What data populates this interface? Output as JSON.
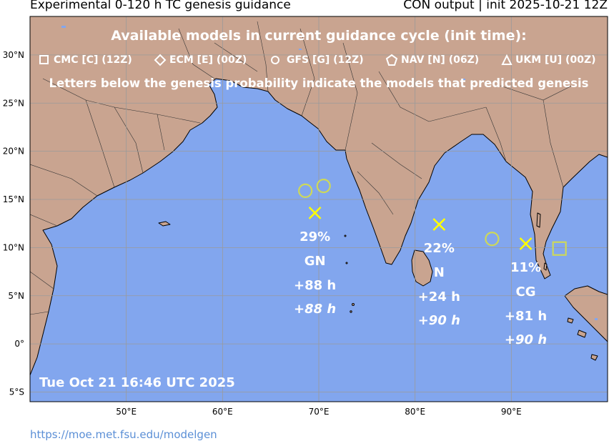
{
  "header": {
    "title_left": "Experimental 0-120 h TC genesis guidance",
    "title_right": "CON output | init 2025-10-21 12Z"
  },
  "legend": {
    "heading": "Available models in current guidance cycle (init time):",
    "models": [
      {
        "symbol": "square",
        "label": "CMC [C] (12Z)"
      },
      {
        "symbol": "diamond",
        "label": "ECM [E] (00Z)"
      },
      {
        "symbol": "circle",
        "label": "GFS [G] (12Z)"
      },
      {
        "symbol": "pentagon",
        "label": "NAV [N] (06Z)"
      },
      {
        "symbol": "triangle",
        "label": "UKM [U] (00Z)"
      }
    ],
    "note": "Letters below the genesis probability indicate the models that predicted genesis"
  },
  "map": {
    "lon_min": 40,
    "lon_max": 100,
    "lat_min": -6,
    "lat_max": 34,
    "lat_ticks": [
      {
        "value": 30,
        "label": "30°N"
      },
      {
        "value": 25,
        "label": "25°N"
      },
      {
        "value": 20,
        "label": "20°N"
      },
      {
        "value": 15,
        "label": "15°N"
      },
      {
        "value": 10,
        "label": "10°N"
      },
      {
        "value": 5,
        "label": "5°N"
      },
      {
        "value": 0,
        "label": "0°"
      },
      {
        "value": -5,
        "label": "5°S"
      }
    ],
    "lon_ticks": [
      {
        "value": 50,
        "label": "50°E"
      },
      {
        "value": 60,
        "label": "60°E"
      },
      {
        "value": 70,
        "label": "70°E"
      },
      {
        "value": 80,
        "label": "80°E"
      },
      {
        "value": 90,
        "label": "90°E"
      }
    ],
    "colors": {
      "ocean": "#82a6ee",
      "land": "#c9a490",
      "grid": "#9a9a9a",
      "marker": "#ffff00",
      "model_symbol": "#cdd85a",
      "text": "#ffffff"
    },
    "genesis_areas": [
      {
        "lon": 69.6,
        "lat": 13.6,
        "probability": "29%",
        "models": "GN",
        "lead_first": "+88 h",
        "lead_last": "+88 h"
      },
      {
        "lon": 82.5,
        "lat": 12.4,
        "probability": "22%",
        "models": "N",
        "lead_first": "+24 h",
        "lead_last": "+90 h"
      },
      {
        "lon": 91.5,
        "lat": 10.4,
        "probability": "11%",
        "models": "CG",
        "lead_first": "+81 h",
        "lead_last": "+90 h"
      }
    ],
    "model_points": [
      {
        "symbol": "circle",
        "lon": 68.6,
        "lat": 15.9
      },
      {
        "symbol": "circle",
        "lon": 70.5,
        "lat": 16.4
      },
      {
        "symbol": "circle",
        "lon": 88.0,
        "lat": 10.9
      },
      {
        "symbol": "square",
        "lon": 95.0,
        "lat": 9.9
      }
    ],
    "timestamp": "Tue Oct 21 16:46 UTC 2025"
  },
  "footer": {
    "link": "https://moe.met.fsu.edu/modelgen"
  }
}
